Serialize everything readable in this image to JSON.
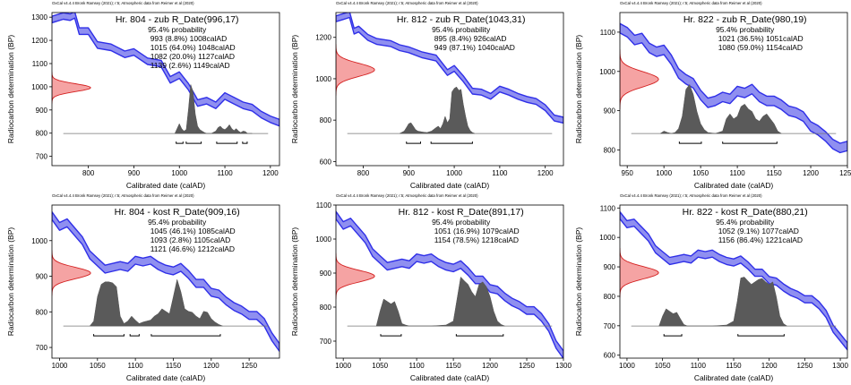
{
  "chart_data": [
    {
      "type": "line",
      "credit": "OxCal v4.4.4 Bronk Ramsey (2021); r:5; Atmospheric data from Reimer et al (2020)",
      "title": "Hr. 804 - zub R_Date(996,17)",
      "xlabel": "Calibrated date (calAD)",
      "ylabel": "Radiocarbon determination (BP)",
      "xlim": [
        720,
        1220
      ],
      "ylim": [
        660,
        1320
      ],
      "xticks": [
        800,
        900,
        1000,
        1100,
        1200
      ],
      "yticks": [
        700,
        800,
        900,
        1000,
        1100,
        1200,
        1300
      ],
      "probability_heading": "95.4% probability",
      "ranges": [
        "993 (8.8%) 1008calAD",
        "1015 (64.0%) 1048calAD",
        "1082 (20.0%) 1127calAD",
        "1139 (2.6%) 1149calAD"
      ],
      "range_bars": [
        [
          993,
          1008
        ],
        [
          1015,
          1048
        ],
        [
          1082,
          1127
        ],
        [
          1139,
          1149
        ]
      ],
      "measurement": {
        "mean": 996,
        "sd": 17
      },
      "calibration_curve": {
        "x": [
          720,
          745,
          760,
          770,
          780,
          800,
          820,
          850,
          880,
          900,
          930,
          960,
          980,
          1000,
          1020,
          1040,
          1060,
          1080,
          1100,
          1120,
          1140,
          1160,
          1180,
          1200,
          1220
        ],
        "y": [
          1290,
          1305,
          1300,
          1310,
          1240,
          1240,
          1180,
          1170,
          1140,
          1150,
          1110,
          1100,
          1030,
          1050,
          1000,
          930,
          940,
          920,
          960,
          940,
          920,
          910,
          880,
          860,
          845
        ],
        "half_width": 14
      },
      "posterior": {
        "x": [
          990,
          995,
          1000,
          1005,
          1010,
          1015,
          1020,
          1025,
          1030,
          1035,
          1040,
          1045,
          1050,
          1055,
          1060,
          1070,
          1080,
          1085,
          1090,
          1095,
          1100,
          1105,
          1110,
          1115,
          1120,
          1125,
          1130,
          1135,
          1140,
          1145,
          1150,
          1160
        ],
        "p": [
          0,
          0.1,
          0.2,
          0.1,
          0.05,
          0.08,
          0.5,
          1.0,
          0.85,
          0.4,
          0.15,
          0.08,
          0.05,
          0.02,
          0,
          0,
          0.05,
          0.12,
          0.15,
          0.1,
          0.08,
          0.12,
          0.18,
          0.1,
          0.06,
          0.1,
          0.05,
          0.02,
          0.05,
          0.04,
          0,
          0
        ]
      }
    },
    {
      "type": "line",
      "credit": "OxCal v4.4.4 Bronk Ramsey (2021); r:5; Atmospheric data from Reimer et al (2020)",
      "title": "Hr. 812 - zub R_Date(1043,31)",
      "xlabel": "Calibrated date (calAD)",
      "ylabel": "Radiocarbon determination (BP)",
      "xlim": [
        740,
        1240
      ],
      "ylim": [
        580,
        1320
      ],
      "xticks": [
        800,
        900,
        1000,
        1100,
        1200
      ],
      "yticks": [
        600,
        800,
        1000,
        1200
      ],
      "probability_heading": "95.4% probability",
      "ranges": [
        "895 (8.4%) 926calAD",
        "949 (87.1%) 1040calAD"
      ],
      "range_bars": [
        [
          895,
          926
        ],
        [
          949,
          1040
        ]
      ],
      "measurement": {
        "mean": 1043,
        "sd": 31
      },
      "calibration_curve": {
        "x": [
          740,
          755,
          770,
          780,
          790,
          810,
          830,
          860,
          880,
          900,
          930,
          960,
          985,
          1000,
          1020,
          1040,
          1060,
          1080,
          1100,
          1120,
          1140,
          1160,
          1180,
          1200,
          1220,
          1240
        ],
        "y": [
          1290,
          1300,
          1310,
          1230,
          1240,
          1200,
          1180,
          1170,
          1150,
          1140,
          1115,
          1100,
          1030,
          1050,
          1000,
          940,
          935,
          915,
          950,
          935,
          915,
          900,
          890,
          860,
          810,
          800
        ],
        "half_width": 14
      },
      "posterior": {
        "x": [
          880,
          890,
          895,
          900,
          905,
          910,
          915,
          920,
          925,
          930,
          940,
          950,
          960,
          965,
          970,
          975,
          980,
          985,
          990,
          995,
          1000,
          1005,
          1010,
          1015,
          1020,
          1025,
          1030,
          1035,
          1040,
          1045
        ],
        "p": [
          0,
          0.05,
          0.12,
          0.2,
          0.22,
          0.15,
          0.08,
          0.05,
          0.04,
          0.03,
          0.02,
          0.05,
          0.12,
          0.15,
          0.1,
          0.2,
          0.35,
          0.22,
          0.3,
          0.85,
          0.92,
          0.95,
          0.88,
          0.9,
          0.6,
          0.35,
          0.15,
          0.06,
          0.02,
          0
        ]
      }
    },
    {
      "type": "line",
      "credit": "OxCal v4.4.4 Bronk Ramsey (2021); r:5; Atmospheric data from Reimer et al (2020)",
      "title": "Hr. 822 - zub R_Date(980,19)",
      "xlabel": "Calibrated date (calAD)",
      "ylabel": "Radiocarbon determination (BP)",
      "xlim": [
        940,
        1250
      ],
      "ylim": [
        760,
        1150
      ],
      "xticks": [
        950,
        1000,
        1050,
        1100,
        1150,
        1200,
        1250
      ],
      "yticks": [
        800,
        900,
        1000,
        1100
      ],
      "probability_heading": "95.4% probability",
      "ranges": [
        "1021 (36.5%) 1051calAD",
        "1080 (59.0%) 1154calAD"
      ],
      "range_bars": [
        [
          1021,
          1051
        ],
        [
          1080,
          1154
        ]
      ],
      "measurement": {
        "mean": 980,
        "sd": 19
      },
      "calibration_curve": {
        "x": [
          940,
          950,
          960,
          970,
          980,
          990,
          1000,
          1010,
          1020,
          1030,
          1040,
          1050,
          1060,
          1070,
          1080,
          1090,
          1100,
          1110,
          1120,
          1130,
          1140,
          1150,
          1160,
          1170,
          1180,
          1190,
          1200,
          1210,
          1220,
          1230,
          1240,
          1250
        ],
        "y": [
          1110,
          1100,
          1080,
          1085,
          1060,
          1050,
          1055,
          1030,
          995,
          980,
          970,
          940,
          920,
          925,
          935,
          930,
          950,
          945,
          955,
          935,
          925,
          925,
          915,
          900,
          895,
          885,
          860,
          850,
          835,
          815,
          805,
          810
        ],
        "half_width": 12
      },
      "posterior": {
        "x": [
          995,
          1000,
          1005,
          1010,
          1015,
          1020,
          1025,
          1030,
          1035,
          1040,
          1045,
          1050,
          1055,
          1060,
          1070,
          1080,
          1085,
          1090,
          1095,
          1100,
          1105,
          1110,
          1115,
          1120,
          1125,
          1130,
          1135,
          1140,
          1145,
          1150,
          1155,
          1160
        ],
        "p": [
          0,
          0.05,
          0.02,
          0,
          0.02,
          0.1,
          0.35,
          0.9,
          1.0,
          0.8,
          0.45,
          0.2,
          0.08,
          0.02,
          0,
          0.05,
          0.3,
          0.4,
          0.3,
          0.35,
          0.55,
          0.6,
          0.5,
          0.45,
          0.3,
          0.25,
          0.35,
          0.4,
          0.3,
          0.2,
          0.05,
          0
        ]
      }
    },
    {
      "type": "line",
      "credit": "OxCal v4.4.4 Bronk Ramsey (2021); r:5; Atmospheric data from Reimer et al (2020)",
      "title": "Hr. 804 - kost R_Date(909,16)",
      "xlabel": "Calibrated date (calAD)",
      "ylabel": "Radiocarbon determination (BP)",
      "xlim": [
        990,
        1290
      ],
      "ylim": [
        670,
        1100
      ],
      "xticks": [
        1000,
        1050,
        1100,
        1150,
        1200,
        1250
      ],
      "yticks": [
        700,
        800,
        900,
        1000
      ],
      "probability_heading": "95.4% probability",
      "ranges": [
        "1045 (46.1%) 1085calAD",
        "1093 (2.8%) 1105calAD",
        "1121 (46.6%) 1212calAD"
      ],
      "range_bars": [
        [
          1045,
          1085
        ],
        [
          1093,
          1105
        ],
        [
          1121,
          1212
        ]
      ],
      "measurement": {
        "mean": 909,
        "sd": 16
      },
      "calibration_curve": {
        "x": [
          990,
          1000,
          1010,
          1020,
          1030,
          1040,
          1050,
          1060,
          1070,
          1080,
          1090,
          1100,
          1110,
          1120,
          1130,
          1140,
          1150,
          1160,
          1170,
          1180,
          1190,
          1200,
          1210,
          1220,
          1230,
          1240,
          1250,
          1260,
          1270,
          1280,
          1290
        ],
        "y": [
          1070,
          1040,
          1050,
          1025,
          1000,
          960,
          940,
          920,
          925,
          930,
          925,
          945,
          940,
          945,
          930,
          920,
          915,
          925,
          905,
          880,
          880,
          855,
          850,
          830,
          815,
          805,
          790,
          790,
          770,
          730,
          700
        ],
        "half_width": 11
      },
      "posterior": {
        "x": [
          1040,
          1045,
          1050,
          1055,
          1060,
          1065,
          1070,
          1075,
          1080,
          1085,
          1090,
          1095,
          1100,
          1105,
          1110,
          1115,
          1120,
          1125,
          1130,
          1135,
          1140,
          1145,
          1150,
          1155,
          1160,
          1165,
          1170,
          1175,
          1180,
          1185,
          1190,
          1195,
          1200,
          1205,
          1210,
          1215
        ],
        "p": [
          0,
          0.1,
          0.6,
          0.85,
          0.9,
          0.9,
          0.88,
          0.8,
          0.2,
          0.05,
          0.1,
          0.2,
          0.12,
          0.05,
          0.08,
          0.1,
          0.12,
          0.2,
          0.25,
          0.35,
          0.3,
          0.25,
          0.6,
          0.95,
          0.7,
          0.35,
          0.3,
          0.28,
          0.2,
          0.15,
          0.3,
          0.28,
          0.15,
          0.08,
          0.03,
          0
        ]
      }
    },
    {
      "type": "line",
      "credit": "OxCal v4.4.4 Bronk Ramsey (2021); r:5; Atmospheric data from Reimer et al (2020)",
      "title": "Hr. 812 - kost R_Date(891,17)",
      "xlabel": "Calibrated date (calAD)",
      "ylabel": "Radiocarbon determination (BP)",
      "xlim": [
        990,
        1300
      ],
      "ylim": [
        650,
        1100
      ],
      "xticks": [
        1000,
        1050,
        1100,
        1150,
        1200,
        1250,
        1300
      ],
      "yticks": [
        700,
        800,
        900,
        1000,
        1100
      ],
      "probability_heading": "95.4% probability",
      "ranges": [
        "1051 (16.9%) 1079calAD",
        "1154 (78.5%) 1218calAD"
      ],
      "range_bars": [
        [
          1051,
          1079
        ],
        [
          1154,
          1218
        ]
      ],
      "measurement": {
        "mean": 891,
        "sd": 17
      },
      "calibration_curve": {
        "x": [
          990,
          1000,
          1010,
          1020,
          1030,
          1040,
          1050,
          1060,
          1070,
          1080,
          1090,
          1100,
          1110,
          1120,
          1130,
          1140,
          1150,
          1160,
          1170,
          1180,
          1190,
          1200,
          1210,
          1220,
          1230,
          1240,
          1250,
          1260,
          1270,
          1280,
          1290,
          1300
        ],
        "y": [
          1070,
          1040,
          1050,
          1025,
          1000,
          960,
          940,
          920,
          925,
          930,
          925,
          945,
          940,
          945,
          930,
          920,
          915,
          925,
          905,
          880,
          880,
          855,
          850,
          830,
          815,
          805,
          790,
          790,
          770,
          740,
          690,
          660
        ],
        "half_width": 11
      },
      "posterior": {
        "x": [
          1045,
          1050,
          1055,
          1060,
          1065,
          1070,
          1075,
          1080,
          1085,
          1090,
          1100,
          1120,
          1140,
          1150,
          1155,
          1160,
          1165,
          1170,
          1175,
          1180,
          1185,
          1190,
          1195,
          1200,
          1205,
          1210,
          1215,
          1220
        ],
        "p": [
          0,
          0.3,
          0.55,
          0.5,
          0.45,
          0.5,
          0.3,
          0.05,
          0.02,
          0,
          0,
          0,
          0.02,
          0.1,
          0.55,
          1.0,
          0.92,
          0.85,
          0.7,
          0.6,
          0.85,
          0.9,
          0.8,
          0.6,
          0.3,
          0.1,
          0.03,
          0
        ]
      }
    },
    {
      "type": "line",
      "credit": "OxCal v4.4.4 Bronk Ramsey (2021); r:5; Atmospheric data from Reimer et al (2020)",
      "title": "Hr. 822 - kost R_Date(880,21)",
      "xlabel": "Calibrated date (calAD)",
      "ylabel": "Radiocarbon determination (BP)",
      "xlim": [
        990,
        1310
      ],
      "ylim": [
        590,
        1110
      ],
      "xticks": [
        1000,
        1050,
        1100,
        1150,
        1200,
        1250,
        1300
      ],
      "yticks": [
        600,
        700,
        800,
        900,
        1000,
        1100
      ],
      "probability_heading": "95.4% probability",
      "ranges": [
        "1052 (9.1%) 1077calAD",
        "1156 (86.4%) 1221calAD"
      ],
      "range_bars": [
        [
          1052,
          1077
        ],
        [
          1156,
          1221
        ]
      ],
      "measurement": {
        "mean": 880,
        "sd": 21
      },
      "calibration_curve": {
        "x": [
          990,
          1000,
          1010,
          1020,
          1030,
          1040,
          1050,
          1060,
          1070,
          1080,
          1090,
          1100,
          1110,
          1120,
          1130,
          1140,
          1150,
          1160,
          1170,
          1180,
          1190,
          1200,
          1210,
          1220,
          1230,
          1240,
          1250,
          1260,
          1270,
          1280,
          1290,
          1300,
          1310
        ],
        "y": [
          1075,
          1045,
          1050,
          1025,
          1000,
          960,
          940,
          920,
          925,
          930,
          925,
          945,
          940,
          945,
          930,
          920,
          915,
          925,
          905,
          880,
          880,
          855,
          850,
          830,
          815,
          805,
          790,
          790,
          770,
          740,
          690,
          660,
          630
        ],
        "half_width": 12
      },
      "posterior": {
        "x": [
          1045,
          1050,
          1055,
          1060,
          1065,
          1070,
          1075,
          1080,
          1085,
          1090,
          1100,
          1120,
          1140,
          1150,
          1155,
          1160,
          1165,
          1170,
          1175,
          1180,
          1185,
          1190,
          1195,
          1200,
          1205,
          1210,
          1215,
          1220,
          1225
        ],
        "p": [
          0,
          0.2,
          0.35,
          0.3,
          0.25,
          0.28,
          0.15,
          0.03,
          0,
          0,
          0,
          0,
          0.02,
          0.1,
          0.5,
          0.98,
          1.0,
          0.92,
          0.85,
          0.9,
          0.95,
          0.97,
          0.9,
          0.85,
          0.9,
          0.6,
          0.2,
          0.05,
          0
        ]
      }
    }
  ]
}
